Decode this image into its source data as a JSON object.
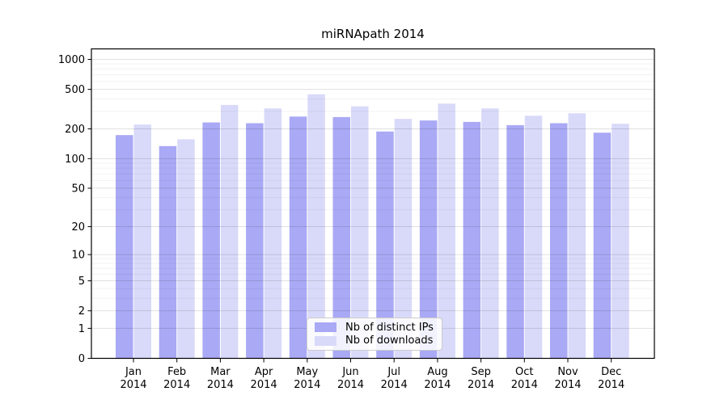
{
  "title": "miRNApath 2014",
  "chart_data": {
    "type": "bar",
    "title": "miRNApath 2014",
    "categories": [
      "Jan",
      "Feb",
      "Mar",
      "Apr",
      "May",
      "Jun",
      "Jul",
      "Aug",
      "Sep",
      "Oct",
      "Nov",
      "Dec"
    ],
    "x_year": "2014",
    "series": [
      {
        "name": "Nb of distinct IPs",
        "color": "#a9a9f5",
        "values": [
          173,
          134,
          232,
          228,
          266,
          263,
          188,
          243,
          235,
          218,
          228,
          183
        ]
      },
      {
        "name": "Nb of downloads",
        "color": "#d9d9f9",
        "values": [
          221,
          157,
          348,
          321,
          446,
          337,
          252,
          359,
          321,
          271,
          287,
          225
        ]
      }
    ],
    "yscale": "log1p",
    "yticks": [
      0,
      1,
      2,
      5,
      10,
      20,
      50,
      100,
      200,
      500,
      1000
    ],
    "ylim": [
      0,
      1000
    ],
    "grid": "both",
    "legend_position": "bottom-center"
  }
}
